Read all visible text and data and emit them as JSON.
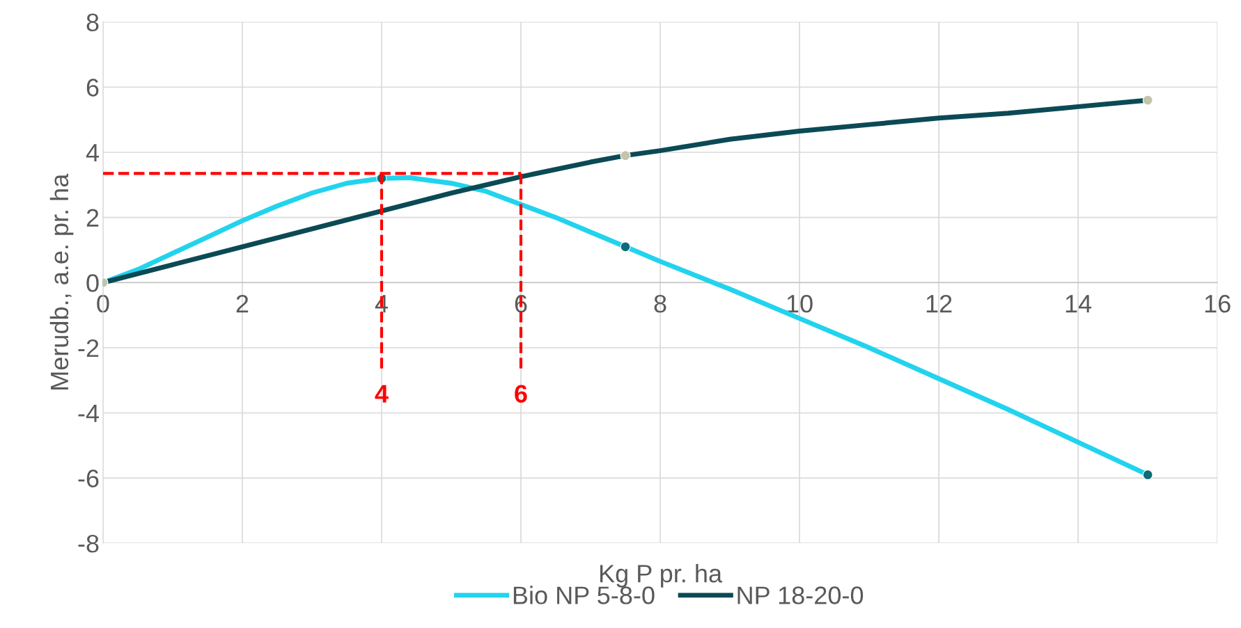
{
  "chart_data": {
    "type": "line",
    "xlabel": "Kg P pr. ha",
    "ylabel": "Merudb., a.e. pr. ha",
    "series": [
      {
        "name": "Bio NP 5-8-0",
        "color": "#22d3ee",
        "marker": "none",
        "x": [
          0,
          0.5,
          1,
          1.5,
          2,
          2.5,
          3,
          3.5,
          4,
          4.4,
          5,
          5.5,
          6,
          6.5,
          7,
          7.5,
          8,
          9,
          10,
          11,
          12,
          13,
          14,
          15
        ],
        "values": [
          0,
          0.4,
          0.9,
          1.4,
          1.9,
          2.35,
          2.75,
          3.05,
          3.2,
          3.22,
          3.05,
          2.8,
          2.4,
          2.0,
          1.55,
          1.1,
          0.65,
          -0.2,
          -1.1,
          -2.0,
          -2.95,
          -3.9,
          -4.9,
          -5.9
        ]
      },
      {
        "name": "NP 18-20-0",
        "color": "#0b4a55",
        "marker": "none",
        "x": [
          0,
          1,
          2,
          3,
          4,
          5,
          6,
          7,
          7.5,
          8,
          9,
          10,
          11,
          12,
          13,
          14,
          15
        ],
        "values": [
          0,
          0.55,
          1.1,
          1.65,
          2.2,
          2.75,
          3.25,
          3.7,
          3.9,
          4.05,
          4.4,
          4.65,
          4.85,
          5.05,
          5.2,
          5.4,
          5.6
        ]
      },
      {
        "type": "scatter",
        "marker": "circle",
        "color": "#0e6c78",
        "x": [
          0,
          4,
          7.5,
          15
        ],
        "values": [
          0,
          3.2,
          1.1,
          -5.9
        ]
      },
      {
        "type": "scatter",
        "marker": "circle",
        "color": "#c4c3ab",
        "x": [
          0,
          7.5,
          15
        ],
        "values": [
          0,
          3.9,
          5.6
        ]
      }
    ],
    "xlim": [
      0,
      16
    ],
    "xticks": [
      0,
      2,
      4,
      6,
      8,
      10,
      12,
      14,
      16
    ],
    "ylim": [
      -8,
      8
    ],
    "yticks": [
      -8,
      -6,
      -4,
      -2,
      0,
      2,
      4,
      6,
      8
    ],
    "ref_lines": [
      {
        "axis": "y",
        "value": 3.35,
        "label": null,
        "color": "#ff0000",
        "line_style": "dashed"
      },
      {
        "axis": "x",
        "value": 4,
        "label": "4",
        "color": "#ff0000",
        "line_style": "dashed"
      },
      {
        "axis": "x",
        "value": 6,
        "label": "6",
        "color": "#ff0000",
        "line_style": "dashed"
      }
    ],
    "grid": true,
    "legend": "bottom",
    "line_style": "solid"
  }
}
